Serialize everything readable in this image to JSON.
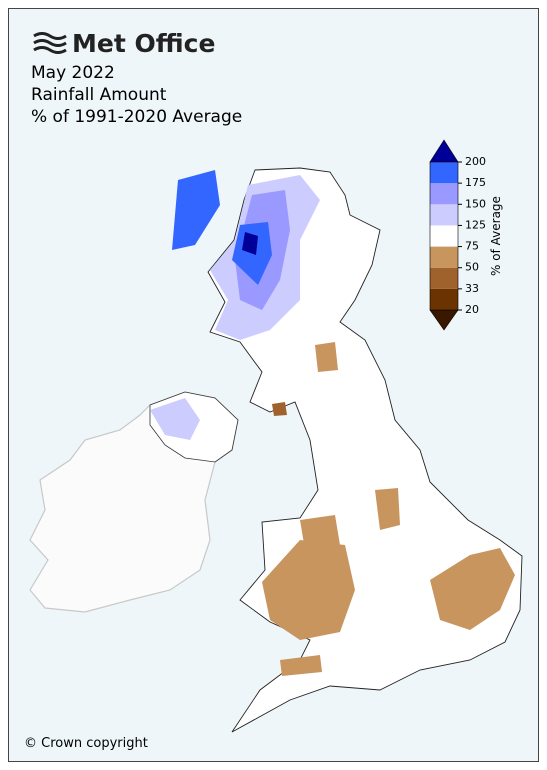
{
  "header": {
    "logo": "Met Office",
    "title": "May 2022",
    "subtitle": "Rainfall Amount",
    "description": "% of 1991-2020 Average"
  },
  "legend": {
    "label": "% of Average",
    "ticks": [
      20,
      33,
      50,
      75,
      125,
      150,
      175,
      200
    ],
    "colors": [
      "#3a1800",
      "#6b3300",
      "#a0622d",
      "#c8955f",
      "#ffffff",
      "#ccccff",
      "#9999ff",
      "#3366ff",
      "#000099"
    ]
  },
  "footer": {
    "copyright": "© Crown copyright"
  }
}
